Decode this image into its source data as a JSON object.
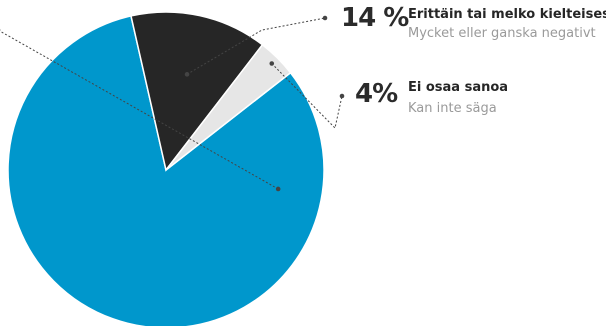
{
  "colors": {
    "positive": "#0097CC",
    "negative": "#262626",
    "dont_know": "#E6E6E6",
    "leader_line": "#444444"
  },
  "chart_data": {
    "type": "pie",
    "slices": [
      {
        "key": "positive",
        "value": 82,
        "pct_label": "",
        "label_fi": "",
        "label_sv": ""
      },
      {
        "key": "negative",
        "value": 14,
        "pct_label": "14 %",
        "label_fi": "Erittäin tai melko kielteisesti",
        "label_sv": "Mycket eller ganska negativt"
      },
      {
        "key": "dont_know",
        "value": 4,
        "pct_label": "4%",
        "label_fi": "Ei osaa sanoa",
        "label_sv": "Kan inte säga"
      }
    ]
  }
}
